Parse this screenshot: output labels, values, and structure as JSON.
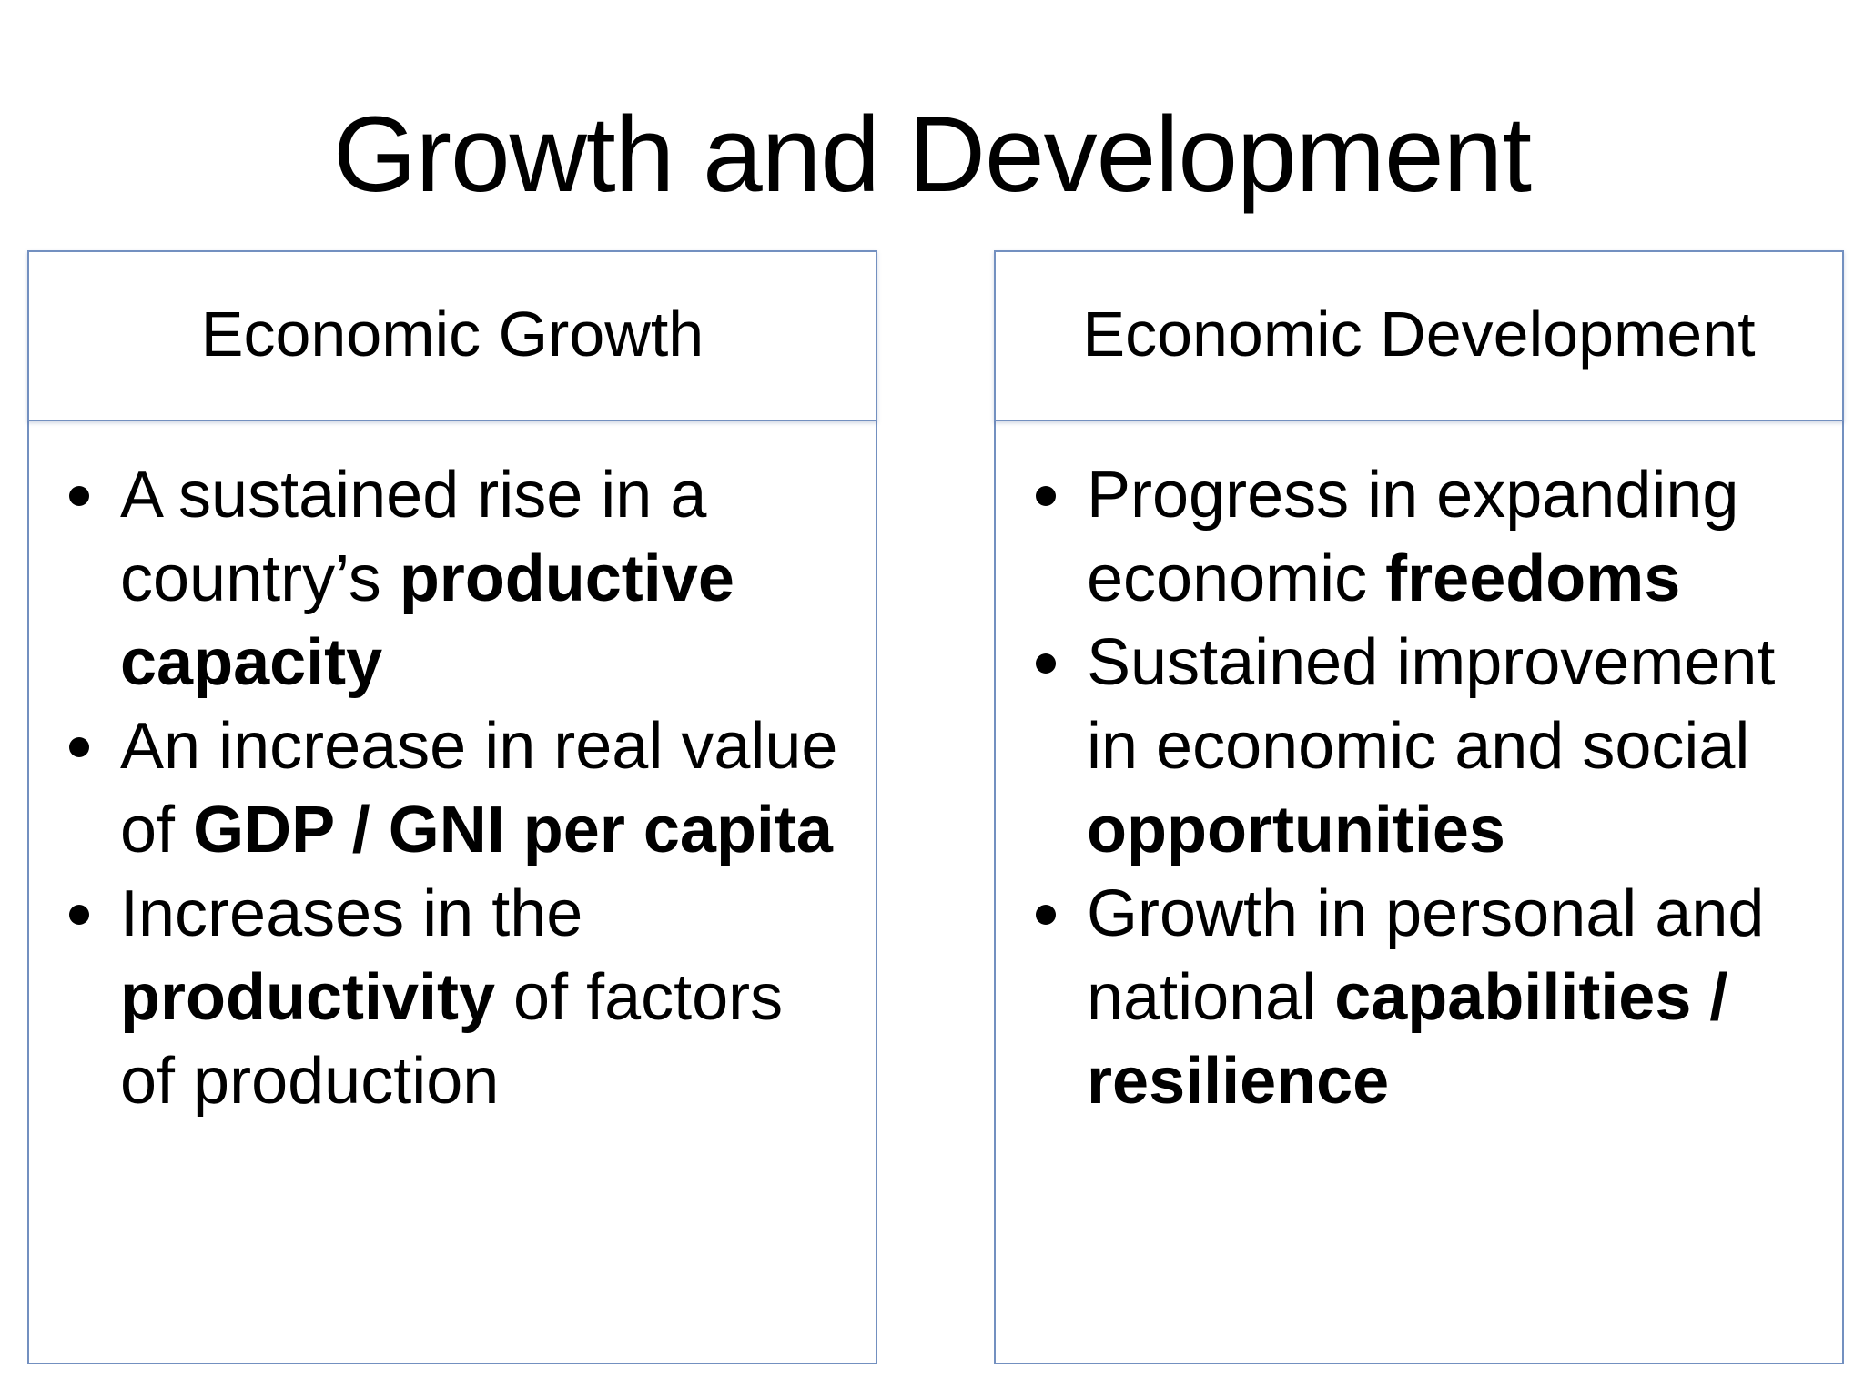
{
  "title": "Growth and Development",
  "colors": {
    "panel_border": "#7390c0",
    "text": "#000000",
    "background": "#ffffff"
  },
  "columns": [
    {
      "heading": "Economic Growth",
      "bullets": [
        {
          "parts": [
            {
              "text": "A sustained rise in a country’s ",
              "bold": false
            },
            {
              "text": "productive capacity",
              "bold": true
            }
          ]
        },
        {
          "parts": [
            {
              "text": "An increase in real value of ",
              "bold": false
            },
            {
              "text": "GDP / GNI per capita",
              "bold": true
            }
          ]
        },
        {
          "parts": [
            {
              "text": "Increases in the ",
              "bold": false
            },
            {
              "text": "productivity",
              "bold": true
            },
            {
              "text": " of factors of production",
              "bold": false
            }
          ]
        }
      ]
    },
    {
      "heading": "Economic Development",
      "bullets": [
        {
          "parts": [
            {
              "text": "Progress in expanding economic ",
              "bold": false
            },
            {
              "text": "freedoms",
              "bold": true
            }
          ]
        },
        {
          "parts": [
            {
              "text": "Sustained improvement in economic and social ",
              "bold": false
            },
            {
              "text": "opportunities",
              "bold": true
            }
          ]
        },
        {
          "parts": [
            {
              "text": "Growth in personal and national ",
              "bold": false
            },
            {
              "text": "capabilities / resilience",
              "bold": true
            }
          ]
        }
      ]
    }
  ]
}
